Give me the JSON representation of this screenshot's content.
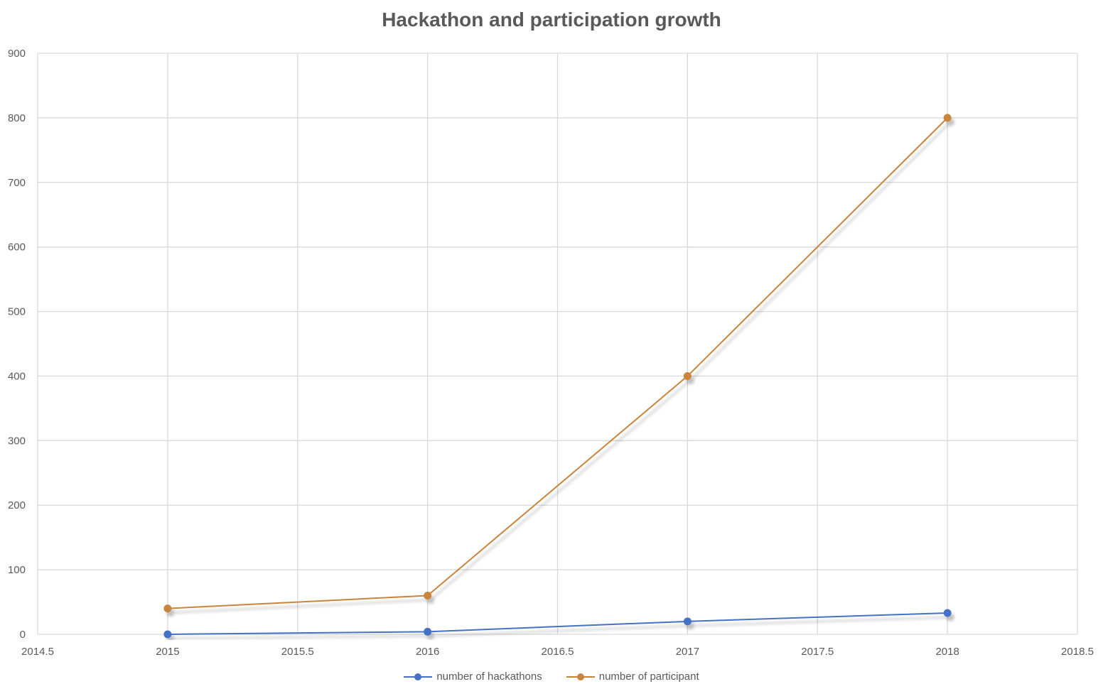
{
  "chart_data": {
    "type": "scatter",
    "title": "Hackathon and participation growth",
    "xlabel": "",
    "ylabel": "",
    "xlim": [
      2014.5,
      2018.5
    ],
    "ylim": [
      0,
      900
    ],
    "x_ticks": [
      2014.5,
      2015,
      2015.5,
      2016,
      2016.5,
      2017,
      2017.5,
      2018,
      2018.5
    ],
    "y_ticks": [
      0,
      100,
      200,
      300,
      400,
      500,
      600,
      700,
      800,
      900
    ],
    "grid": true,
    "legend_position": "bottom",
    "series": [
      {
        "name": "number of hackathons",
        "color": "#4472C4",
        "x": [
          2015,
          2016,
          2017,
          2018
        ],
        "y": [
          0,
          4,
          20,
          33
        ]
      },
      {
        "name": "number of participant",
        "color": "#C9843C",
        "x": [
          2015,
          2016,
          2017,
          2018
        ],
        "y": [
          40,
          60,
          400,
          800
        ]
      }
    ]
  }
}
